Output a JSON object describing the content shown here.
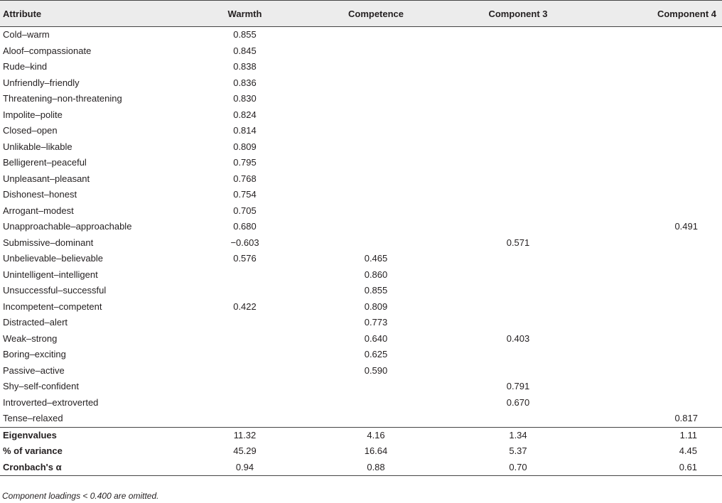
{
  "table": {
    "headers": [
      "Attribute",
      "Warmth",
      "Competence",
      "Component 3",
      "Component 4"
    ],
    "rows": [
      [
        "Cold–warm",
        "0.855",
        "",
        "",
        ""
      ],
      [
        "Aloof–compassionate",
        "0.845",
        "",
        "",
        ""
      ],
      [
        "Rude–kind",
        "0.838",
        "",
        "",
        ""
      ],
      [
        "Unfriendly–friendly",
        "0.836",
        "",
        "",
        ""
      ],
      [
        "Threatening–non-threatening",
        "0.830",
        "",
        "",
        ""
      ],
      [
        "Impolite–polite",
        "0.824",
        "",
        "",
        ""
      ],
      [
        "Closed–open",
        "0.814",
        "",
        "",
        ""
      ],
      [
        "Unlikable–likable",
        "0.809",
        "",
        "",
        ""
      ],
      [
        "Belligerent–peaceful",
        "0.795",
        "",
        "",
        ""
      ],
      [
        "Unpleasant–pleasant",
        "0.768",
        "",
        "",
        ""
      ],
      [
        "Dishonest–honest",
        "0.754",
        "",
        "",
        ""
      ],
      [
        "Arrogant–modest",
        "0.705",
        "",
        "",
        ""
      ],
      [
        "Unapproachable–approachable",
        "0.680",
        "",
        "",
        "0.491"
      ],
      [
        "Submissive–dominant",
        "−0.603",
        "",
        "0.571",
        ""
      ],
      [
        "Unbelievable–believable",
        "0.576",
        "0.465",
        "",
        ""
      ],
      [
        "Unintelligent–intelligent",
        "",
        "0.860",
        "",
        ""
      ],
      [
        "Unsuccessful–successful",
        "",
        "0.855",
        "",
        ""
      ],
      [
        "Incompetent–competent",
        "0.422",
        "0.809",
        "",
        ""
      ],
      [
        "Distracted–alert",
        "",
        "0.773",
        "",
        ""
      ],
      [
        "Weak–strong",
        "",
        "0.640",
        "0.403",
        ""
      ],
      [
        "Boring–exciting",
        "",
        "0.625",
        "",
        ""
      ],
      [
        "Passive–active",
        "",
        "0.590",
        "",
        ""
      ],
      [
        "Shy–self-confident",
        "",
        "",
        "0.791",
        ""
      ],
      [
        "Introverted–extroverted",
        "",
        "",
        "0.670",
        ""
      ],
      [
        "Tense–relaxed",
        "",
        "",
        "",
        "0.817"
      ]
    ],
    "summary": [
      [
        "Eigenvalues",
        "11.32",
        "4.16",
        "1.34",
        "1.11"
      ],
      [
        "% of variance",
        "45.29",
        "16.64",
        "5.37",
        "4.45"
      ],
      [
        "Cronbach's α",
        "0.94",
        "0.88",
        "0.70",
        "0.61"
      ]
    ]
  },
  "footnote": "Component loadings < 0.400 are omitted."
}
